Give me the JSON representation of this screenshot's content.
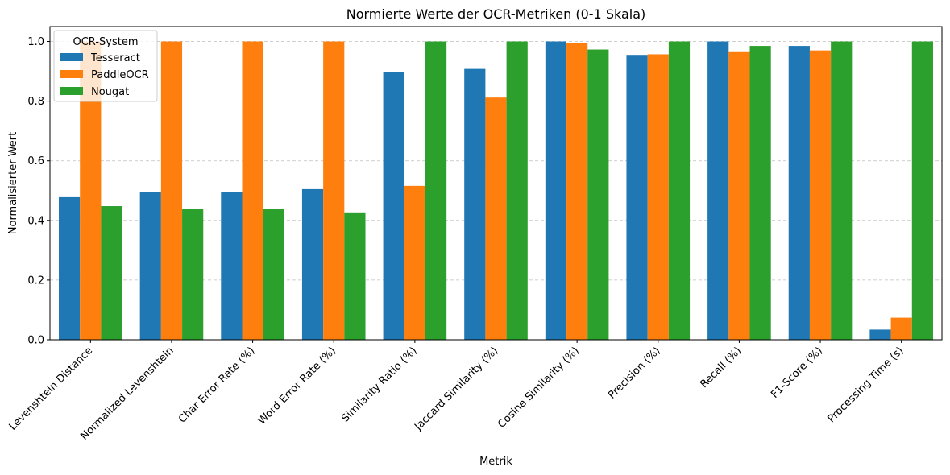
{
  "chart_data": {
    "type": "bar",
    "title": "Normierte Werte der OCR-Metriken (0-1 Skala)",
    "xlabel": "Metrik",
    "ylabel": "Normalisierter Wert",
    "ylim": [
      0,
      1.05
    ],
    "yticks": [
      "0.0",
      "0.2",
      "0.4",
      "0.6",
      "0.8",
      "1.0"
    ],
    "grid": "horizontal-dashed",
    "legend_title": "OCR-System",
    "legend_position": "top-left",
    "categories": [
      "Levenshtein Distance",
      "Normalized Levenshtein",
      "Char Error Rate (%)",
      "Word Error Rate (%)",
      "Similarity Ratio (%)",
      "Jaccard Similarity (%)",
      "Cosine Similarity (%)",
      "Precision (%)",
      "Recall (%)",
      "F1-Score (%)",
      "Processing Time (s)"
    ],
    "series": [
      {
        "name": "Tesseract",
        "color": "#1f77b4",
        "values": [
          0.478,
          0.494,
          0.494,
          0.505,
          0.897,
          0.908,
          1.0,
          0.955,
          1.0,
          0.985,
          0.034
        ]
      },
      {
        "name": "PaddleOCR",
        "color": "#ff7f0e",
        "values": [
          1.0,
          1.0,
          1.0,
          1.0,
          0.516,
          0.812,
          0.995,
          0.957,
          0.967,
          0.97,
          0.074
        ]
      },
      {
        "name": "Nougat",
        "color": "#2ca02c",
        "values": [
          0.448,
          0.44,
          0.44,
          0.427,
          1.0,
          1.0,
          0.973,
          1.0,
          0.985,
          1.0,
          1.0
        ]
      }
    ]
  }
}
